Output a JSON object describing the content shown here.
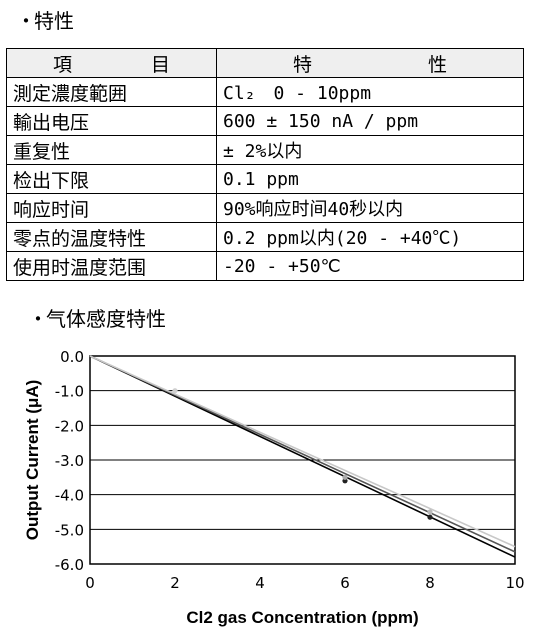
{
  "section1": {
    "bullet": "・",
    "title": "特性"
  },
  "table": {
    "headers": [
      "項　　目",
      "特　　性"
    ],
    "header_parts": [
      [
        "項",
        "目"
      ],
      [
        "特",
        "性"
      ]
    ],
    "rows": [
      {
        "item": "測定濃度範囲",
        "value": "Cl₂　0 - 10ppm"
      },
      {
        "item": "輸出电压",
        "value": "600 ± 150 nA / ppm"
      },
      {
        "item": "重复性",
        "value": "± 2%以内"
      },
      {
        "item": "检出下限",
        "value": "0.1 ppm"
      },
      {
        "item": "响应时间",
        "value": "90%响应时间40秒以内"
      },
      {
        "item": "零点的温度特性",
        "value": "0.2 ppm以内(20 - +40℃)"
      },
      {
        "item": "使用时温度范围",
        "value": "-20 - +50℃"
      }
    ]
  },
  "section2": {
    "bullet": "・",
    "title": "气体感度特性"
  },
  "chart_data": {
    "type": "line",
    "title": "",
    "xlabel": "Cl2 gas Concentration (ppm)",
    "ylabel": "Output Current (μA)",
    "xlim": [
      0,
      10
    ],
    "ylim": [
      -6.0,
      0.0
    ],
    "x_ticks": [
      "0",
      "2",
      "4",
      "6",
      "8",
      "10"
    ],
    "y_ticks": [
      "0.0",
      "-1.0",
      "-2.0",
      "-3.0",
      "-4.0",
      "-5.0",
      "-6.0"
    ],
    "grid": "horizontal",
    "series": [
      {
        "color": "#000000",
        "x": [
          0,
          10
        ],
        "y": [
          0.0,
          -5.8
        ]
      },
      {
        "color": "#555555",
        "x": [
          0,
          10
        ],
        "y": [
          0.0,
          -5.65
        ]
      },
      {
        "color": "#c8c8c8",
        "x": [
          0,
          10
        ],
        "y": [
          0.0,
          -5.5
        ]
      }
    ],
    "points": [
      {
        "x": 2,
        "y": -1.0,
        "color": "#d0d0d0"
      },
      {
        "x": 6,
        "y": -3.6,
        "color": "#222222"
      },
      {
        "x": 6,
        "y": -3.5,
        "color": "#aaaaaa"
      },
      {
        "x": 8,
        "y": -4.65,
        "color": "#222222"
      },
      {
        "x": 8,
        "y": -4.5,
        "color": "#bbbbbb"
      }
    ]
  }
}
